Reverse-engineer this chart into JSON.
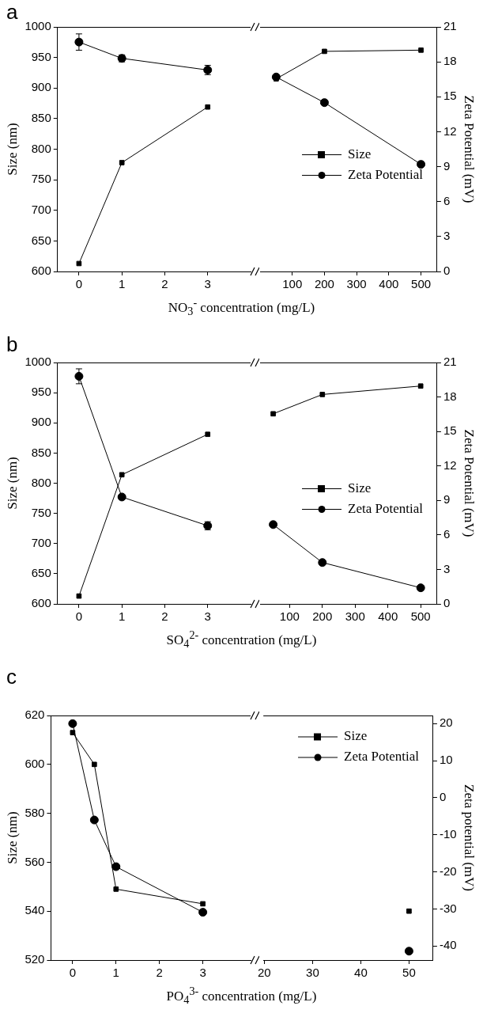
{
  "chart_data": [
    {
      "type": "line",
      "title": "a",
      "xlabel": "NO$_{3}$$^{-}$ concentration (mg/L)",
      "ylabel": "Size (nm)",
      "x": [
        0,
        1,
        3
      ],
      "xlim": [
        -0.5,
        4
      ],
      "xticks": [
        0,
        1,
        2,
        3
      ],
      "ylim": [
        600,
        1000
      ],
      "yticks": [
        600,
        650,
        700,
        750,
        800,
        850,
        900,
        950,
        1000
      ],
      "y2lim": [
        0,
        21
      ],
      "tick_labels": [
        "x",
        "y"
      ],
      "series": [
        {
          "color": "#000000",
          "marker": "square",
          "values": [
            613,
            778,
            869
          ]
        },
        {
          "color": "#000000",
          "marker": "circle",
          "axis": "y2",
          "values": [
            19.7,
            18.3,
            17.3
          ],
          "errors": [
            0.7,
            0.3,
            0.4
          ]
        }
      ]
    },
    {
      "type": "line",
      "x": [
        50,
        200,
        500
      ],
      "xlim": [
        0,
        550
      ],
      "xticks": [
        100,
        200,
        300,
        400,
        500
      ],
      "ylim": [
        600,
        1000
      ],
      "y2lim": [
        0,
        21
      ],
      "y2ticks": [
        0,
        3,
        6,
        9,
        12,
        15,
        18,
        21
      ],
      "y2label": "Zeta Potential (mV)",
      "legend": "right",
      "tick_labels": [
        "x",
        "y2"
      ],
      "series": [
        {
          "name": "Size",
          "color": "#000000",
          "marker": "square",
          "values": [
            915,
            960,
            962
          ]
        },
        {
          "name": "Zeta Potential",
          "color": "#000000",
          "marker": "circle",
          "axis": "y2",
          "values": [
            16.7,
            14.5,
            9.2
          ]
        }
      ]
    },
    {
      "type": "line",
      "title": "b",
      "xlabel": "SO$_{4}$$^{2-}$ concentration (mg/L)",
      "ylabel": "Size (nm)",
      "x": [
        0,
        1,
        3
      ],
      "xlim": [
        -0.5,
        4
      ],
      "xticks": [
        0,
        1,
        2,
        3
      ],
      "ylim": [
        600,
        1000
      ],
      "yticks": [
        600,
        650,
        700,
        750,
        800,
        850,
        900,
        950,
        1000
      ],
      "y2lim": [
        0,
        21
      ],
      "tick_labels": [
        "x",
        "y"
      ],
      "series": [
        {
          "color": "#000000",
          "marker": "square",
          "values": [
            613,
            814,
            881
          ]
        },
        {
          "color": "#000000",
          "marker": "circle",
          "axis": "y2",
          "values": [
            19.8,
            9.3,
            6.8
          ],
          "errors": [
            0.65,
            null,
            0.35
          ]
        }
      ]
    },
    {
      "type": "line",
      "x": [
        50,
        200,
        500
      ],
      "xlim": [
        10,
        550
      ],
      "xticks": [
        100,
        200,
        300,
        400,
        500
      ],
      "ylim": [
        600,
        1000
      ],
      "y2lim": [
        0,
        21
      ],
      "y2ticks": [
        0,
        3,
        6,
        9,
        12,
        15,
        18,
        21
      ],
      "y2label": "Zeta Potential (mV)",
      "legend": "right",
      "tick_labels": [
        "x",
        "y2"
      ],
      "series": [
        {
          "name": "Size",
          "color": "#000000",
          "marker": "square",
          "values": [
            915,
            947,
            961
          ]
        },
        {
          "name": "Zeta Potential",
          "color": "#000000",
          "marker": "circle",
          "axis": "y2",
          "values": [
            6.9,
            3.6,
            1.4
          ]
        }
      ]
    },
    {
      "type": "line",
      "title": "c",
      "xlabel": "PO$_{4}$$^{3-}$ concentration (mg/L)",
      "ylabel": "Size (nm)",
      "x": [
        0,
        0.5,
        1,
        3
      ],
      "xlim": [
        -0.5,
        4.1
      ],
      "xticks": [
        0,
        1,
        2,
        3
      ],
      "ylim": [
        520,
        620
      ],
      "yticks": [
        520,
        540,
        560,
        580,
        600,
        620
      ],
      "y2lim": [
        -43.8,
        22.2
      ],
      "tick_labels": [
        "x",
        "y"
      ],
      "series": [
        {
          "color": "#000000",
          "marker": "square",
          "values": [
            613,
            600,
            549,
            543
          ]
        },
        {
          "color": "#000000",
          "marker": "circle",
          "axis": "y2",
          "values": [
            20,
            -6,
            -18.6,
            -30.9
          ]
        }
      ]
    },
    {
      "type": "line",
      "x": [
        50
      ],
      "xlim": [
        19.8,
        55
      ],
      "xticks": [
        20,
        30,
        40,
        50
      ],
      "ylim": [
        520,
        620
      ],
      "y2lim": [
        -43.8,
        22.2
      ],
      "y2ticks": [
        -40,
        -30,
        -20,
        -10,
        0,
        10,
        20
      ],
      "y2label": "Zeta potential (mV)",
      "legend": "top right",
      "tick_labels": [
        "x",
        "y2"
      ],
      "series": [
        {
          "name": "Size",
          "color": "#000000",
          "marker": "square",
          "values": [
            540
          ]
        },
        {
          "name": "Zeta Potential",
          "color": "#000000",
          "marker": "circle",
          "axis": "y2",
          "values": [
            -41.4
          ]
        }
      ]
    }
  ]
}
